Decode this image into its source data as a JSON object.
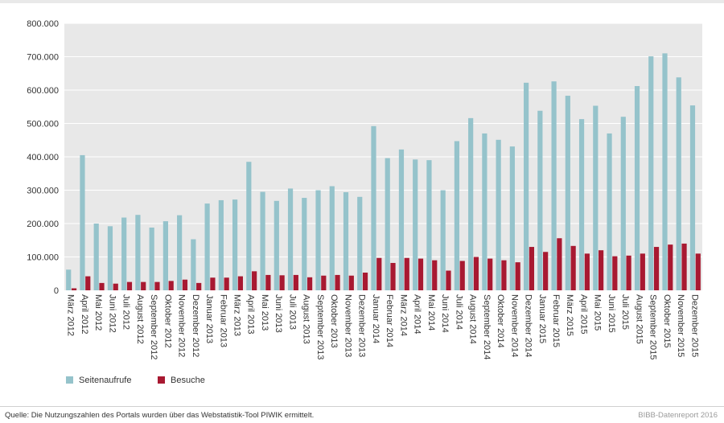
{
  "chart_data": {
    "type": "bar",
    "categories": [
      "März 2012",
      "April 2012",
      "Mai 2012",
      "Juni 2012",
      "Juli 2012",
      "August 2012",
      "September 2012",
      "Oktober 2012",
      "November 2012",
      "Dezember 2012",
      "Januar 2013",
      "Februar 2013",
      "März 2013",
      "April 2013",
      "Mai 2013",
      "Juni 2013",
      "Juli 2013",
      "August 2013",
      "September 2013",
      "Oktober 2013",
      "November 2013",
      "Dezember 2013",
      "Januar 2014",
      "Februar 2014",
      "März 2014",
      "April 2014",
      "Mai 2014",
      "Juni 2014",
      "Juli 2014",
      "August 2014",
      "September 2014",
      "Oktober 2014",
      "November 2014",
      "Dezember 2014",
      "Januar 2015",
      "Februar 2015",
      "März 2015",
      "April 2015",
      "Mai 2015",
      "Juni 2015",
      "Juli 2015",
      "August 2015",
      "September 2015",
      "Oktober 2015",
      "November 2015",
      "Dezember 2015"
    ],
    "series": [
      {
        "name": "Seitenaufrufe",
        "color": "#95c3cb",
        "values": [
          62000,
          405000,
          200000,
          192000,
          218000,
          226000,
          188000,
          207000,
          225000,
          153000,
          260000,
          270000,
          272000,
          385000,
          295000,
          268000,
          305000,
          277000,
          300000,
          312000,
          294000,
          280000,
          492000,
          396000,
          422000,
          392000,
          390000,
          300000,
          447000,
          516000,
          470000,
          451000,
          431000,
          622000,
          538000,
          626000,
          583000,
          513000,
          553000,
          470000,
          520000,
          612000,
          701000,
          710000,
          638000,
          554000
        ]
      },
      {
        "name": "Besuche",
        "color": "#a81931",
        "values": [
          6000,
          42000,
          22000,
          20000,
          25000,
          25000,
          25000,
          28000,
          32000,
          22000,
          38000,
          38000,
          42000,
          57000,
          46000,
          45000,
          46000,
          39000,
          44000,
          46000,
          44000,
          53000,
          97000,
          82000,
          97000,
          95000,
          90000,
          59000,
          88000,
          100000,
          95000,
          90000,
          84000,
          130000,
          115000,
          156000,
          133000,
          110000,
          120000,
          102000,
          104000,
          110000,
          130000,
          137000,
          140000,
          110000
        ]
      }
    ],
    "yticks": [
      "0",
      "100.000",
      "200.000",
      "300.000",
      "400.000",
      "500.000",
      "600.000",
      "700.000",
      "800.000"
    ],
    "ylim": [
      0,
      800000
    ],
    "grid": true,
    "legend_position": "bottom-left"
  },
  "legend": {
    "items": [
      {
        "label": "Seitenaufrufe",
        "color": "#95c3cb"
      },
      {
        "label": "Besuche",
        "color": "#a81931"
      }
    ]
  },
  "footer": {
    "source": "Quelle: Die Nutzungszahlen des Portals wurden über das Webstatistik-Tool PIWIK ermittelt.",
    "report": "BIBB-Datenreport 2016"
  }
}
